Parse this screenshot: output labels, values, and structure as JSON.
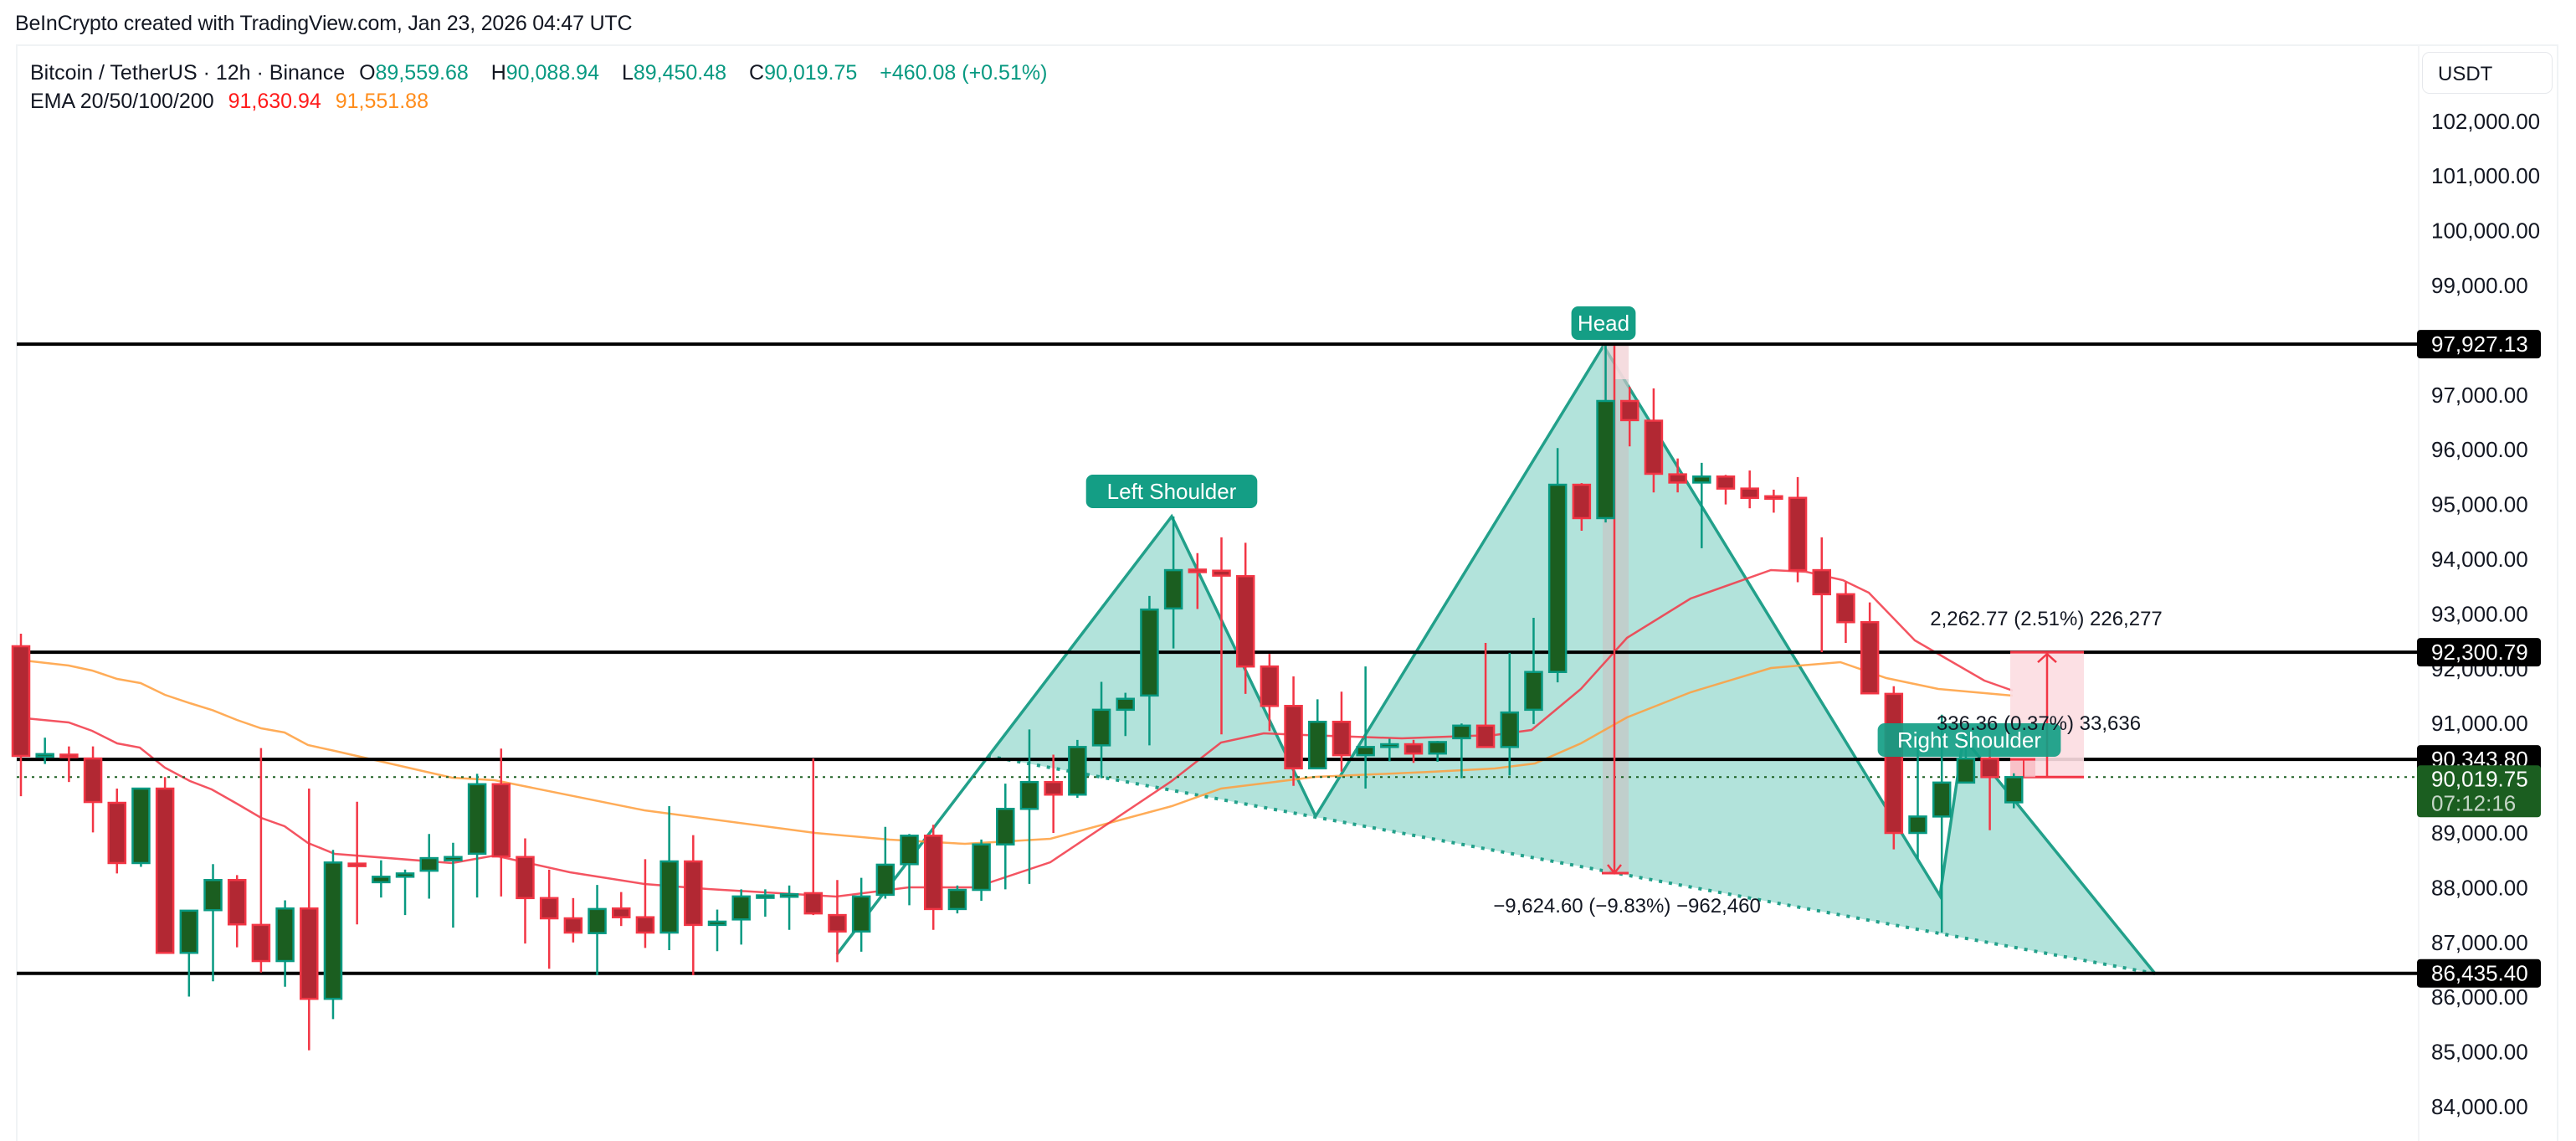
{
  "attribution": "BeInCrypto created with TradingView.com, Jan 23, 2026 04:47 UTC",
  "legend": {
    "symbol": "Bitcoin / TetherUS · 12h · Binance",
    "open_label": "O",
    "open": "89,559.68",
    "high_label": "H",
    "high": "90,088.94",
    "low_label": "L",
    "low": "89,450.48",
    "close_label": "C",
    "close": "90,019.75",
    "change": "+460.08 (+0.51%)",
    "ema_label": "EMA 20/50/100/200",
    "ema20": "91,630.94",
    "ema50": "91,551.88"
  },
  "currency_button": "USDT",
  "colors": {
    "up_body": "#1b5e20",
    "up_border": "#089981",
    "down_body": "#b22833",
    "down_border": "#f23645",
    "ema20": "#f23645",
    "ema50": "#ff9d3b",
    "pattern_fill": "#b2e3db",
    "pattern_line": "#22a08a",
    "label_bg": "#149e85",
    "level_line": "#000000",
    "last_price_bg": "#1b5e20",
    "measure_fill": "#fcdde1",
    "measure_line": "#f23645"
  },
  "chart_data": {
    "type": "candlestick",
    "title": "Bitcoin / TetherUS · 12h · Binance",
    "ylabel": "USDT",
    "ylim": [
      83500,
      102600
    ],
    "y_ticks": [
      "102,000.00",
      "101,000.00",
      "100,000.00",
      "99,000.00",
      "97,000.00",
      "96,000.00",
      "95,000.00",
      "94,000.00",
      "93,000.00",
      "92,000.00",
      "91,000.00",
      "89,000.00",
      "88,000.00",
      "87,000.00",
      "86,000.00",
      "85,000.00",
      "84,000.00"
    ],
    "y_tick_values": [
      102000,
      101000,
      100000,
      99000,
      97000,
      96000,
      95000,
      94000,
      93000,
      92000,
      91000,
      89000,
      88000,
      87000,
      86000,
      85000,
      84000
    ],
    "candles_ohlc": [
      [
        92410,
        92640,
        89670,
        90407
      ],
      [
        90420,
        90740,
        90260,
        90440
      ],
      [
        90430,
        90580,
        89930,
        90390
      ],
      [
        90360,
        90580,
        89010,
        89565
      ],
      [
        89550,
        89810,
        88260,
        88450
      ],
      [
        88450,
        89810,
        88380,
        89810
      ],
      [
        89810,
        90020,
        86840,
        86810
      ],
      [
        86810,
        87000,
        86010,
        87580
      ],
      [
        87590,
        88430,
        86290,
        88140
      ],
      [
        88140,
        88230,
        86910,
        87330
      ],
      [
        87320,
        90550,
        86450,
        86660
      ],
      [
        86660,
        87770,
        86190,
        87620
      ],
      [
        87620,
        89810,
        85030,
        85970
      ],
      [
        85970,
        88690,
        85600,
        88460
      ],
      [
        88440,
        89570,
        87330,
        88400
      ],
      [
        88100,
        88500,
        87820,
        88200
      ],
      [
        88200,
        88330,
        87500,
        88260
      ],
      [
        88310,
        88980,
        87800,
        88540
      ],
      [
        88500,
        88820,
        87270,
        88560
      ],
      [
        88620,
        90080,
        87820,
        89890
      ],
      [
        89890,
        90540,
        87840,
        88570
      ],
      [
        88560,
        88900,
        86980,
        87810
      ],
      [
        87810,
        88330,
        86520,
        87440
      ],
      [
        87440,
        87810,
        87000,
        87180
      ],
      [
        87170,
        88050,
        86400,
        87610
      ],
      [
        87620,
        87920,
        87300,
        87460
      ],
      [
        87460,
        88520,
        86900,
        87180
      ],
      [
        87180,
        89490,
        86860,
        88480
      ],
      [
        88480,
        88960,
        86400,
        87320
      ],
      [
        87320,
        87600,
        86840,
        87380
      ],
      [
        87420,
        87970,
        86960,
        87840
      ],
      [
        87840,
        87970,
        87470,
        87860
      ],
      [
        87860,
        88040,
        87230,
        87880
      ],
      [
        87900,
        90360,
        87500,
        87530
      ],
      [
        87500,
        88140,
        86640,
        87200
      ],
      [
        87200,
        88180,
        86830,
        87840
      ],
      [
        87870,
        89110,
        87800,
        88420
      ],
      [
        88430,
        88980,
        87680,
        88950
      ],
      [
        88950,
        89150,
        87230,
        87610
      ],
      [
        87610,
        88040,
        87530,
        87960
      ],
      [
        87960,
        88880,
        87760,
        88790
      ],
      [
        88790,
        89900,
        87970,
        89440
      ],
      [
        89440,
        90890,
        88070,
        89930
      ],
      [
        89930,
        90430,
        89000,
        89700
      ],
      [
        89700,
        90700,
        89640,
        90570
      ],
      [
        90600,
        91760,
        90000,
        91250
      ],
      [
        91250,
        91560,
        90770,
        91450
      ],
      [
        91510,
        93330,
        90600,
        93080
      ],
      [
        93100,
        94780,
        92370,
        93800
      ],
      [
        93810,
        94110,
        93090,
        93790
      ],
      [
        93790,
        94400,
        90800,
        93700
      ],
      [
        93690,
        94300,
        91540,
        92040
      ],
      [
        92040,
        92270,
        90860,
        91320
      ],
      [
        91320,
        91860,
        89860,
        90180
      ],
      [
        90180,
        91440,
        90180,
        91030
      ],
      [
        91030,
        91580,
        90120,
        90420
      ],
      [
        90420,
        92040,
        89810,
        90570
      ],
      [
        90570,
        90720,
        90310,
        90620
      ],
      [
        90620,
        90700,
        90280,
        90450
      ],
      [
        90450,
        90680,
        90300,
        90660
      ],
      [
        90730,
        91000,
        90000,
        90960
      ],
      [
        90960,
        92470,
        90760,
        90570
      ],
      [
        90570,
        92290,
        90050,
        91200
      ],
      [
        91250,
        92930,
        90990,
        91940
      ],
      [
        91940,
        96030,
        91750,
        95360
      ],
      [
        95360,
        95390,
        94520,
        94750
      ],
      [
        94750,
        97900,
        94670,
        96890
      ],
      [
        96890,
        97150,
        96060,
        96540
      ],
      [
        96530,
        97120,
        95220,
        95560
      ],
      [
        95550,
        95840,
        95220,
        95400
      ],
      [
        95400,
        95760,
        94200,
        95510
      ],
      [
        95510,
        95540,
        95000,
        95290
      ],
      [
        95290,
        95620,
        94930,
        95120
      ],
      [
        95150,
        95270,
        94850,
        95120
      ],
      [
        95120,
        95500,
        93580,
        93800
      ],
      [
        93800,
        94400,
        92300,
        93360
      ],
      [
        93360,
        93580,
        92470,
        92850
      ],
      [
        92850,
        93210,
        91650,
        91550
      ],
      [
        91540,
        91680,
        88700,
        89000
      ],
      [
        89000,
        90750,
        88520,
        89300
      ],
      [
        89300,
        91160,
        87180,
        89920
      ],
      [
        89920,
        90750,
        89920,
        90360
      ],
      [
        90360,
        90740,
        89050,
        90020
      ],
      [
        89559.68,
        90088.94,
        89450.48,
        90019.75
      ]
    ],
    "ema20_path": [
      [
        20,
        857
      ],
      [
        82,
        863
      ],
      [
        110,
        873
      ],
      [
        140,
        888
      ],
      [
        167,
        893
      ],
      [
        197,
        917
      ],
      [
        227,
        933
      ],
      [
        253,
        943
      ],
      [
        283,
        960
      ],
      [
        312,
        977
      ],
      [
        340,
        987
      ],
      [
        368,
        1007
      ],
      [
        400,
        1020
      ],
      [
        540,
        1031
      ],
      [
        591,
        1022
      ],
      [
        681,
        1042
      ],
      [
        770,
        1056
      ],
      [
        846,
        1062
      ],
      [
        999,
        1071
      ],
      [
        1086,
        1060
      ],
      [
        1165,
        1060
      ],
      [
        1255,
        1030
      ],
      [
        1400,
        933
      ],
      [
        1459,
        887
      ],
      [
        1510,
        876
      ],
      [
        1558,
        878
      ],
      [
        1675,
        882
      ],
      [
        1786,
        878
      ],
      [
        1830,
        872
      ],
      [
        1889,
        823
      ],
      [
        1944,
        762
      ],
      [
        2020,
        715
      ],
      [
        2116,
        681
      ],
      [
        2158,
        683
      ],
      [
        2202,
        693
      ],
      [
        2233,
        708
      ],
      [
        2288,
        765
      ],
      [
        2371,
        813
      ],
      [
        2405,
        825
      ]
    ],
    "ema50_path": [
      [
        20,
        788
      ],
      [
        82,
        795
      ],
      [
        110,
        801
      ],
      [
        140,
        811
      ],
      [
        168,
        816
      ],
      [
        197,
        830
      ],
      [
        227,
        840
      ],
      [
        253,
        848
      ],
      [
        283,
        860
      ],
      [
        312,
        870
      ],
      [
        340,
        875
      ],
      [
        368,
        890
      ],
      [
        400,
        897
      ],
      [
        540,
        929
      ],
      [
        591,
        932
      ],
      [
        770,
        968
      ],
      [
        974,
        995
      ],
      [
        1063,
        1003
      ],
      [
        1153,
        1008
      ],
      [
        1255,
        1002
      ],
      [
        1400,
        963
      ],
      [
        1459,
        942
      ],
      [
        1572,
        928
      ],
      [
        1710,
        922
      ],
      [
        1786,
        918
      ],
      [
        1834,
        912
      ],
      [
        1889,
        888
      ],
      [
        1944,
        857
      ],
      [
        2020,
        827
      ],
      [
        2116,
        798
      ],
      [
        2199,
        791
      ],
      [
        2254,
        810
      ],
      [
        2316,
        823
      ],
      [
        2405,
        831
      ]
    ],
    "horizontal_levels": [
      {
        "price": 97927.13,
        "label": "97,927.13"
      },
      {
        "price": 92300.79,
        "label": "92,300.79"
      },
      {
        "price": 90343.8,
        "label": "90,343.80"
      },
      {
        "price": 86435.4,
        "label": "86,435.40"
      }
    ],
    "last_price": {
      "price": 90019.75,
      "label": "90,019.75",
      "countdown": "07:12:16"
    },
    "pattern": {
      "name": "Head and Shoulders",
      "points": [
        [
          1000,
          1140
        ],
        [
          1400,
          617
        ],
        [
          1572,
          975
        ],
        [
          1916,
          413
        ],
        [
          2318,
          1070
        ],
        [
          2346,
          881
        ],
        [
          2575,
          1163
        ]
      ],
      "neckline": [
        [
          1180,
          903
        ],
        [
          2575,
          1163
        ]
      ],
      "labels": [
        {
          "text": "Left Shoulder",
          "x": 1400,
          "y": 587
        },
        {
          "text": "Head",
          "x": 1916,
          "y": 386
        },
        {
          "text": "Right Shoulder",
          "x": 2353,
          "y": 884
        }
      ]
    },
    "measurements": [
      {
        "text": "−9,624.60 (−9.83%) −962,460",
        "x": 1944,
        "y": 1090
      },
      {
        "text": "2,262.77 (2.51%) 226,277",
        "x": 2445,
        "y": 747
      },
      {
        "text": "336.36 (0.37%) 33,636",
        "x": 2436,
        "y": 872
      }
    ]
  }
}
